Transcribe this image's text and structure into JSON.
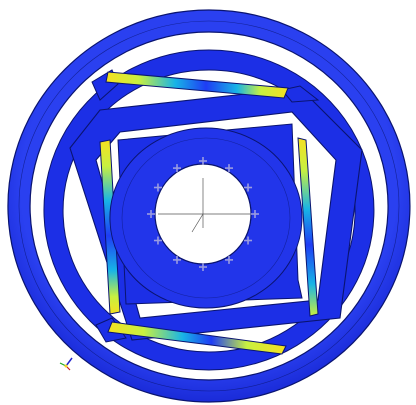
{
  "viewer": {
    "background": "#ffffff",
    "colors": {
      "body": "#1c2fe6",
      "body_light": "#2a40f0",
      "edge": "#0a1470",
      "stress_low": "#1e3cf5",
      "stress_mid_low": "#18b4e6",
      "stress_mid": "#2fe8a0",
      "stress_mid_high": "#c8f040",
      "stress_high": "#f5e020",
      "marker": "#9a9ce0",
      "triad_x": "#cc2222",
      "triad_y": "#22aa22",
      "triad_z": "#2222cc"
    },
    "icons": {
      "constraint_marker": "plus-marker-icon",
      "axis_triad": "axis-triad-icon"
    },
    "constraint_marker_count": 12
  }
}
